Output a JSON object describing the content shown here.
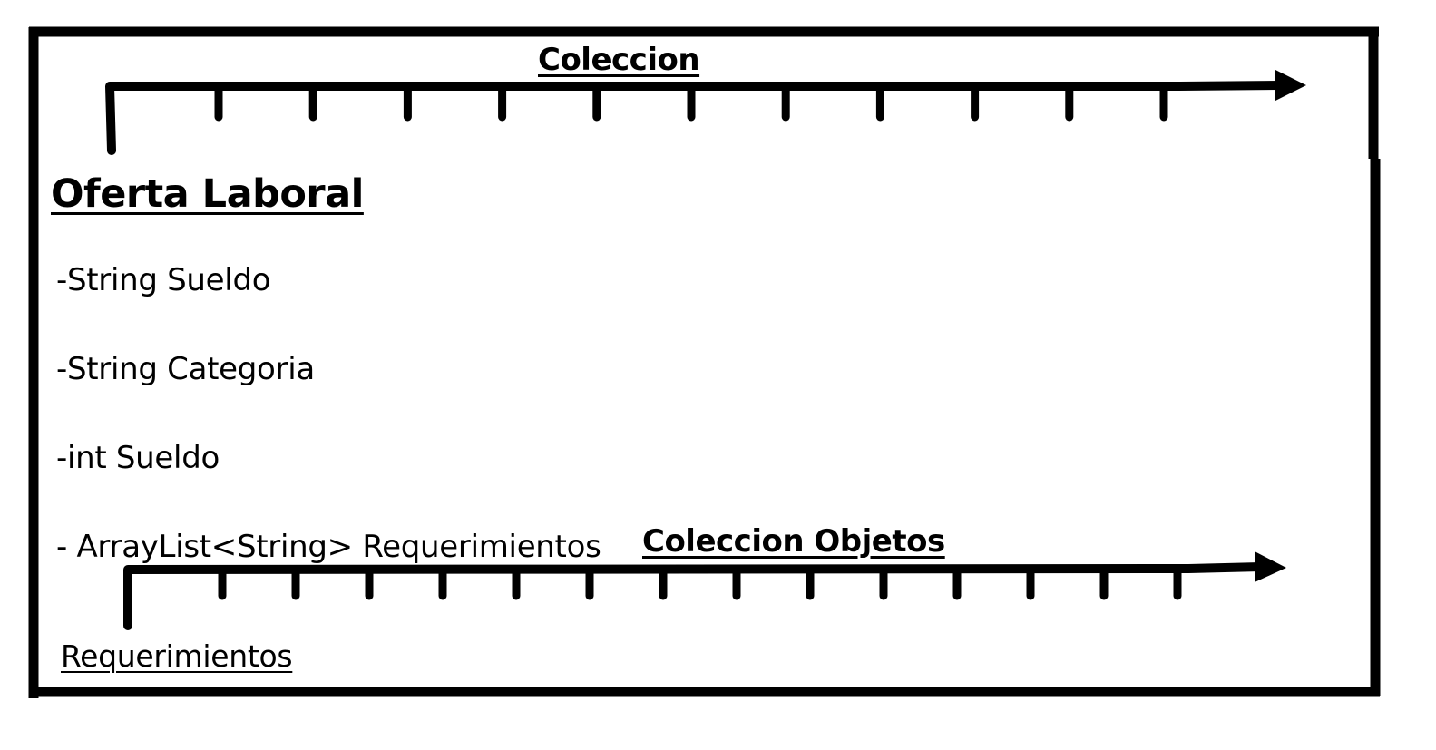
{
  "diagram": {
    "class_name": "Oferta Laboral",
    "attributes": [
      "-String Sueldo",
      "-String Categoria",
      "-int Sueldo",
      "- ArrayList<String> Requerimientos"
    ],
    "top_collection": {
      "label": "Coleccion",
      "tick_count": 11
    },
    "bottom_collection": {
      "label": "Coleccion Objetos",
      "tick_count": 14,
      "element_label": "Requerimientos"
    },
    "colors": {
      "stroke": "#000000",
      "background": "#ffffff"
    }
  }
}
